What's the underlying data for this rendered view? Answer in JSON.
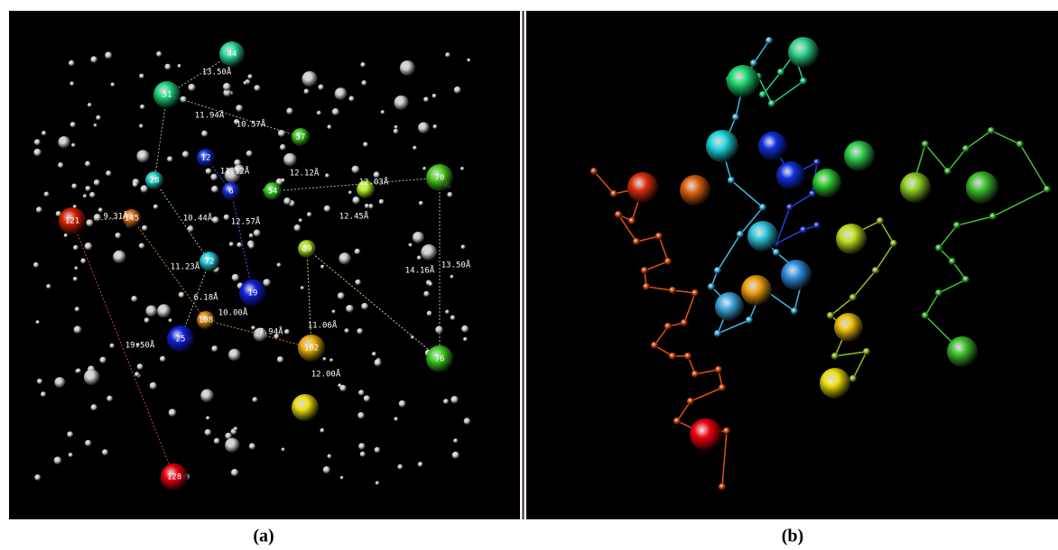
{
  "panel_a": {
    "atom_labels": [
      "44",
      "51",
      "12",
      "6",
      "28",
      "54",
      "57",
      "70",
      "121",
      "145",
      "72",
      "19",
      "108",
      "25",
      "89",
      "102",
      "76",
      "128"
    ],
    "distance_labels": [
      "13.50Å",
      "11.94Å",
      "10.57Å",
      "11.12Å",
      "12.12Å",
      "12.03Å",
      "9.31Å",
      "10.44Å",
      "12.57Å",
      "12.45Å",
      "11.23Å",
      "14.16Å",
      "13.50Å",
      "6.18Å",
      "10.00Å",
      "7.94Å",
      "11.06Å",
      "19.50Å",
      "12.00Å"
    ],
    "caption": "(a)"
  },
  "panel_b": {
    "caption": "(b)"
  }
}
